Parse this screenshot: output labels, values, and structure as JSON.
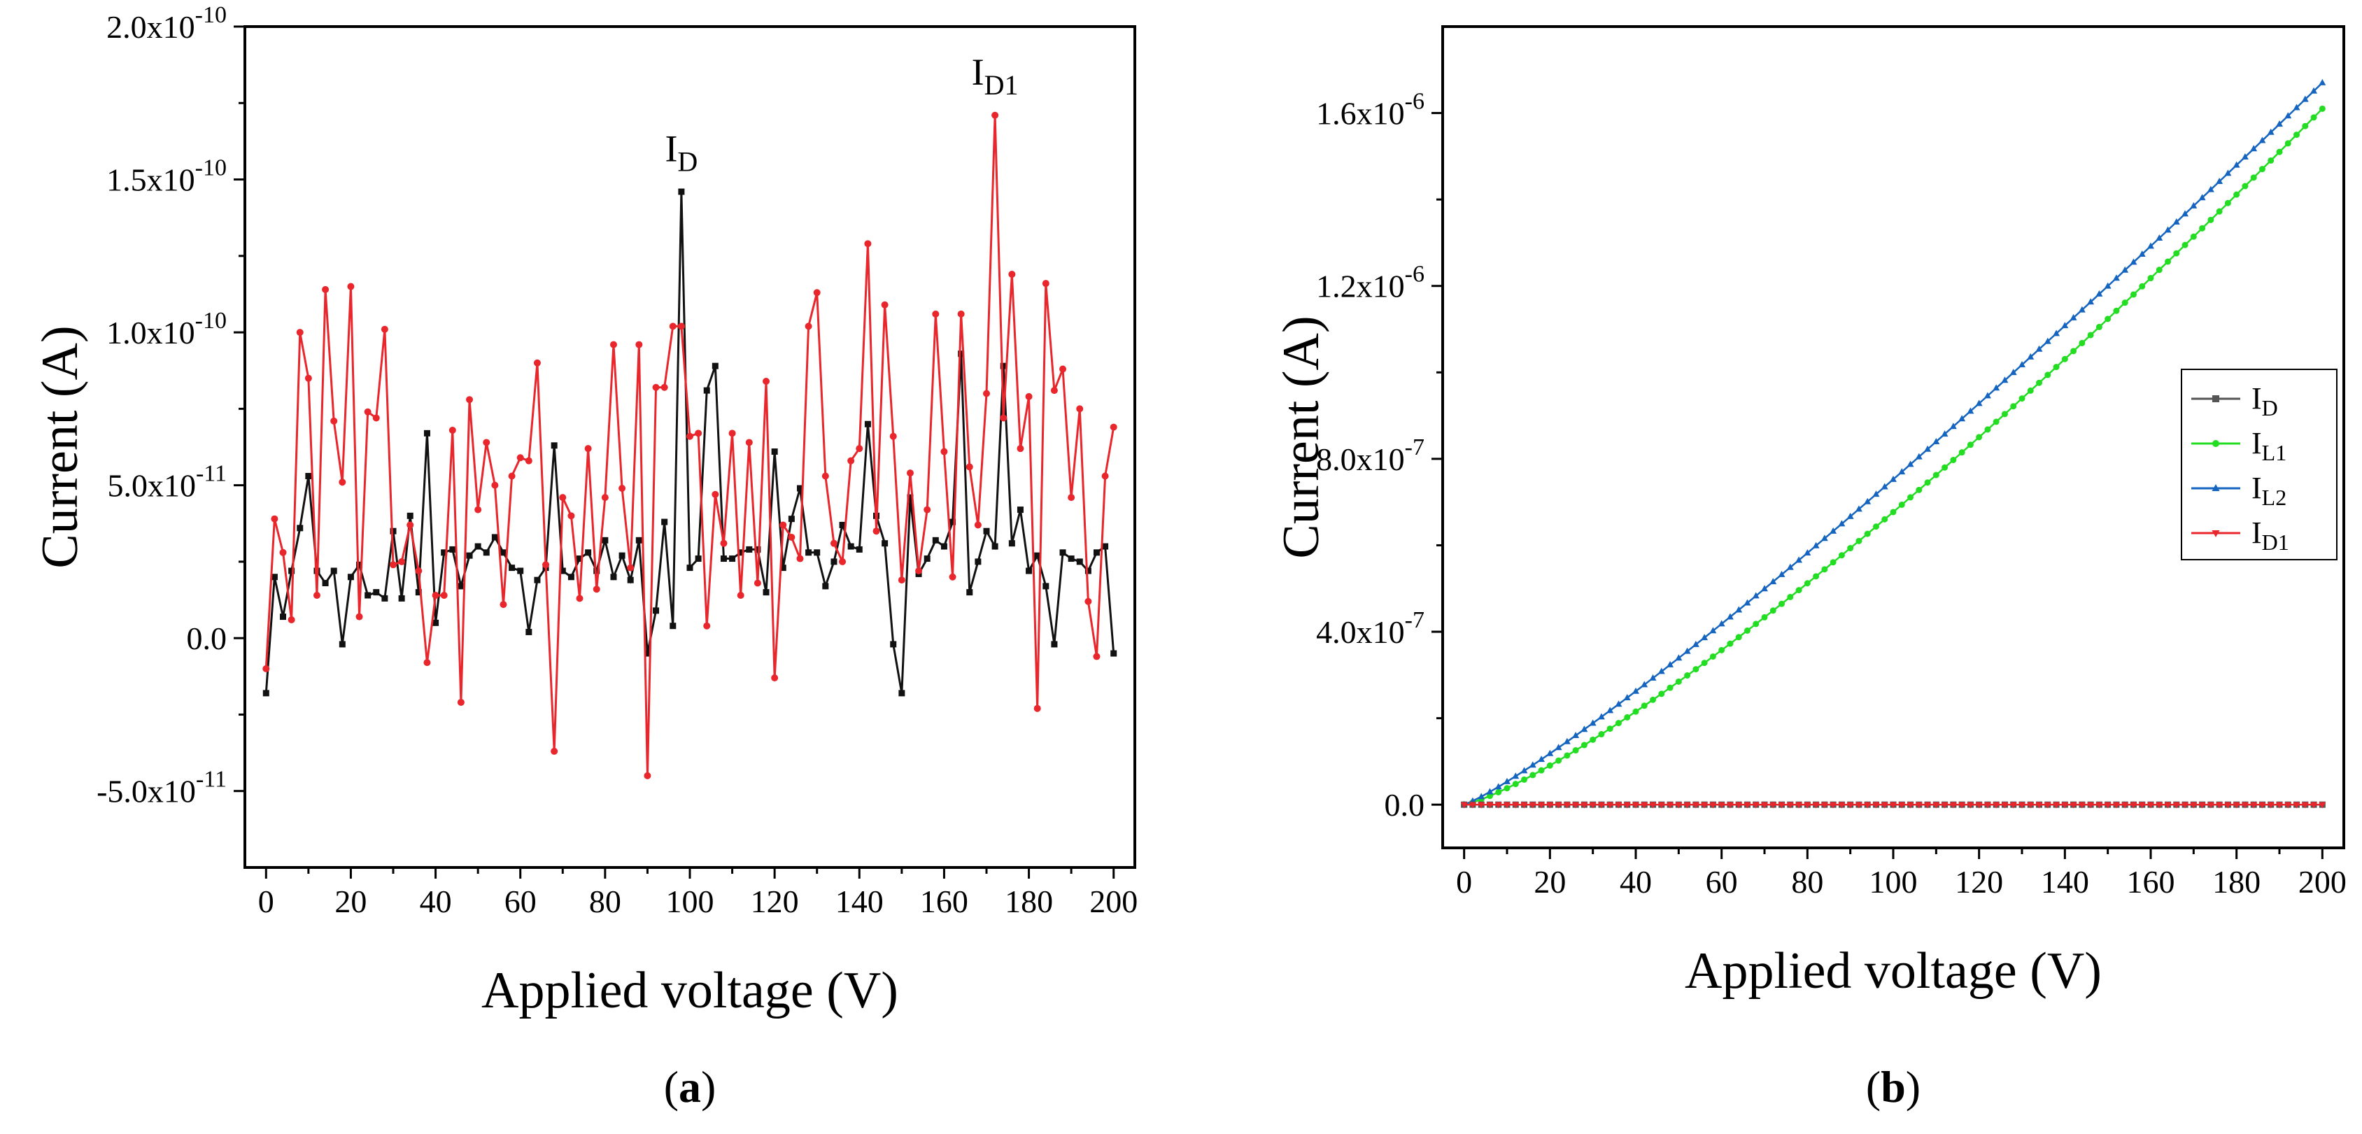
{
  "chart_data": [
    {
      "type": "line",
      "panel_label": "(a)",
      "panel_letter": "a",
      "xlabel": "Applied voltage (V)",
      "ylabel": "Current (A)",
      "xlim": [
        -5,
        205
      ],
      "ylim": [
        -7.5e-11,
        2e-10
      ],
      "xticks": [
        0,
        20,
        40,
        60,
        80,
        100,
        120,
        140,
        160,
        180,
        200
      ],
      "yticks": [
        {
          "value": -5e-11,
          "mant": "-5.0x10",
          "exp": "-11"
        },
        {
          "value": 0,
          "mant": "0.0",
          "exp": ""
        },
        {
          "value": 5e-11,
          "mant": "5.0x10",
          "exp": "-11"
        },
        {
          "value": 1e-10,
          "mant": "1.0x10",
          "exp": "-10"
        },
        {
          "value": 1.5e-10,
          "mant": "1.5x10",
          "exp": "-10"
        },
        {
          "value": 2e-10,
          "mant": "2.0x10",
          "exp": "-10"
        }
      ],
      "annotations": [
        {
          "main": "I",
          "sub": "D",
          "x": 98,
          "y": 1.56e-10
        },
        {
          "main": "I",
          "sub": "D1",
          "x": 172,
          "y": 1.81e-10
        }
      ],
      "x": [
        0,
        2,
        4,
        6,
        8,
        10,
        12,
        14,
        16,
        18,
        20,
        22,
        24,
        26,
        28,
        30,
        32,
        34,
        36,
        38,
        40,
        42,
        44,
        46,
        48,
        50,
        52,
        54,
        56,
        58,
        60,
        62,
        64,
        66,
        68,
        70,
        72,
        74,
        76,
        78,
        80,
        82,
        84,
        86,
        88,
        90,
        92,
        94,
        96,
        98,
        100,
        102,
        104,
        106,
        108,
        110,
        112,
        114,
        116,
        118,
        120,
        122,
        124,
        126,
        128,
        130,
        132,
        134,
        136,
        138,
        140,
        142,
        144,
        146,
        148,
        150,
        152,
        154,
        156,
        158,
        160,
        162,
        164,
        166,
        168,
        170,
        172,
        174,
        176,
        178,
        180,
        182,
        184,
        186,
        188,
        190,
        192,
        194,
        196,
        198,
        200
      ],
      "series": [
        {
          "name_main": "I",
          "name_sub": "D",
          "color": "#111111",
          "marker": "square",
          "values": [
            -1.8e-11,
            2e-11,
            7e-12,
            2.2e-11,
            3.6e-11,
            5.3e-11,
            2.2e-11,
            1.8e-11,
            2.2e-11,
            -2e-12,
            2e-11,
            2.4e-11,
            1.4e-11,
            1.5e-11,
            1.3e-11,
            3.5e-11,
            1.3e-11,
            4e-11,
            1.5e-11,
            6.7e-11,
            5e-12,
            2.8e-11,
            2.9e-11,
            1.7e-11,
            2.7e-11,
            3e-11,
            2.8e-11,
            3.3e-11,
            2.8e-11,
            2.3e-11,
            2.2e-11,
            2e-12,
            1.9e-11,
            2.3e-11,
            6.3e-11,
            2.2e-11,
            2e-11,
            2.6e-11,
            2.8e-11,
            2.2e-11,
            3.2e-11,
            2e-11,
            2.7e-11,
            1.9e-11,
            3.2e-11,
            -5e-12,
            9e-12,
            3.8e-11,
            4e-12,
            1.46e-10,
            2.3e-11,
            2.6e-11,
            8.1e-11,
            8.9e-11,
            2.6e-11,
            2.6e-11,
            2.8e-11,
            2.9e-11,
            2.9e-11,
            1.5e-11,
            6.1e-11,
            2.3e-11,
            3.9e-11,
            4.9e-11,
            2.8e-11,
            2.8e-11,
            1.7e-11,
            2.5e-11,
            3.7e-11,
            3e-11,
            2.9e-11,
            7e-11,
            4e-11,
            3.1e-11,
            -2e-12,
            -1.8e-11,
            4.6e-11,
            2.1e-11,
            2.6e-11,
            3.2e-11,
            3e-11,
            3.8e-11,
            9.3e-11,
            1.5e-11,
            2.5e-11,
            3.5e-11,
            3e-11,
            8.9e-11,
            3.1e-11,
            4.2e-11,
            2.2e-11,
            2.7e-11,
            1.7e-11,
            -2e-12,
            2.8e-11,
            2.6e-11,
            2.5e-11,
            2.2e-11,
            2.8e-11,
            3e-11,
            -5e-12
          ]
        },
        {
          "name_main": "I",
          "name_sub": "D1",
          "color": "#e8262b",
          "marker": "circle",
          "values": [
            -1e-11,
            3.9e-11,
            2.8e-11,
            6e-12,
            1e-10,
            8.5e-11,
            1.4e-11,
            1.14e-10,
            7.1e-11,
            5.1e-11,
            1.15e-10,
            7e-12,
            7.4e-11,
            7.2e-11,
            1.01e-10,
            2.4e-11,
            2.5e-11,
            3.7e-11,
            2.2e-11,
            -8e-12,
            1.4e-11,
            1.4e-11,
            6.8e-11,
            -2.1e-11,
            7.8e-11,
            4.2e-11,
            6.4e-11,
            5e-11,
            1.1e-11,
            5.3e-11,
            5.9e-11,
            5.8e-11,
            9e-11,
            2.4e-11,
            -3.7e-11,
            4.6e-11,
            4e-11,
            1.3e-11,
            6.2e-11,
            1.6e-11,
            4.6e-11,
            9.6e-11,
            4.9e-11,
            2.3e-11,
            9.6e-11,
            -4.5e-11,
            8.2e-11,
            8.2e-11,
            1.02e-10,
            1.02e-10,
            6.6e-11,
            6.7e-11,
            4e-12,
            4.7e-11,
            3.1e-11,
            6.7e-11,
            1.4e-11,
            6.4e-11,
            1.8e-11,
            8.4e-11,
            -1.3e-11,
            3.7e-11,
            3.3e-11,
            2.6e-11,
            1.02e-10,
            1.13e-10,
            5.3e-11,
            3.1e-11,
            2.5e-11,
            5.8e-11,
            6.2e-11,
            1.29e-10,
            3.5e-11,
            1.09e-10,
            6.6e-11,
            1.9e-11,
            5.4e-11,
            2.2e-11,
            4.2e-11,
            1.06e-10,
            6.1e-11,
            2e-11,
            1.06e-10,
            5.6e-11,
            3.7e-11,
            8e-11,
            1.71e-10,
            7.2e-11,
            1.19e-10,
            6.2e-11,
            7.9e-11,
            -2.3e-11,
            1.16e-10,
            8.1e-11,
            8.8e-11,
            4.6e-11,
            7.5e-11,
            1.2e-11,
            -6e-12,
            5.3e-11,
            6.9e-11
          ]
        }
      ]
    },
    {
      "type": "line",
      "panel_label": "(b)",
      "panel_letter": "b",
      "xlabel": "Applied voltage (V)",
      "ylabel": "Current (A)",
      "xlim": [
        -5,
        205
      ],
      "ylim": [
        -1e-07,
        1.8e-06
      ],
      "xticks": [
        0,
        20,
        40,
        60,
        80,
        100,
        120,
        140,
        160,
        180,
        200
      ],
      "yticks": [
        {
          "value": 0,
          "mant": "0.0",
          "exp": ""
        },
        {
          "value": 4e-07,
          "mant": "4.0x10",
          "exp": "-7"
        },
        {
          "value": 8e-07,
          "mant": "8.0x10",
          "exp": "-7"
        },
        {
          "value": 1.2e-06,
          "mant": "1.2x10",
          "exp": "-6"
        },
        {
          "value": 1.6e-06,
          "mant": "1.6x10",
          "exp": "-6"
        }
      ],
      "legend_position": "right",
      "x_start": 0,
      "x_step": 2,
      "x_end": 200,
      "series": [
        {
          "name_main": "I",
          "name_sub": "D",
          "color": "#555555",
          "marker": "square",
          "function": "zero",
          "y_end": 0,
          "exponent": 1
        },
        {
          "name_main": "I",
          "name_sub": "L1",
          "color": "#22dd22",
          "marker": "circle",
          "function": "power",
          "y_end": 1.61e-06,
          "exponent": 1.25
        },
        {
          "name_main": "I",
          "name_sub": "L2",
          "color": "#1565c0",
          "marker": "triangle",
          "function": "power",
          "y_end": 1.67e-06,
          "exponent": 1.15
        },
        {
          "name_main": "I",
          "name_sub": "D1",
          "color": "#e8262b",
          "marker": "triangle-down",
          "function": "zero",
          "y_end": 0,
          "exponent": 1
        }
      ]
    }
  ]
}
